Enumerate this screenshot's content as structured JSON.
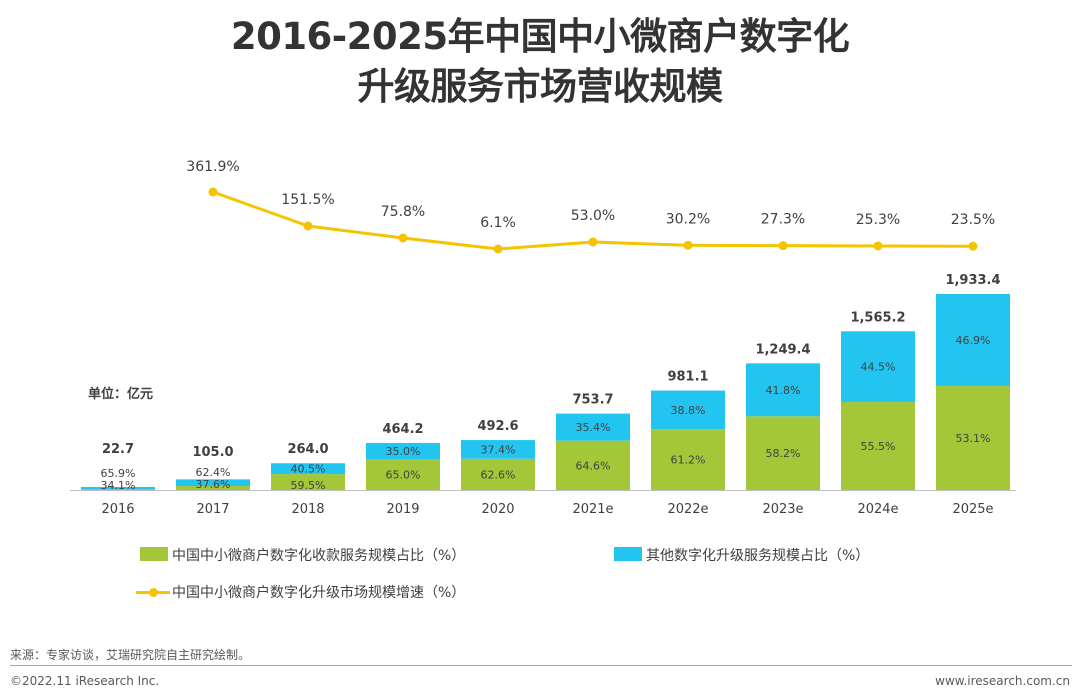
{
  "title_line1": "2016-2025年中国中小微商户数字化",
  "title_line2": "升级服务市场营收规模",
  "unit_label": "单位：亿元",
  "legend": {
    "green": "中国中小微商户数字化收款服务规模占比（%）",
    "blue": "其他数字化升级服务规模占比（%）",
    "line": "中国中小微商户数字化升级市场规模增速（%）"
  },
  "source": "来源：专家访谈，艾瑞研究院自主研究绘制。",
  "footer": {
    "copyright": "©2022.11 iResearch Inc.",
    "url": "www.iresearch.com.cn"
  },
  "colors": {
    "green": "#A4C739",
    "blue": "#22C5F0",
    "line": "#F5C400",
    "axis": "#BFBFBF",
    "text": "#404040"
  },
  "chart_data": {
    "type": "bar",
    "categories": [
      "2016",
      "2017",
      "2018",
      "2019",
      "2020",
      "2021e",
      "2022e",
      "2023e",
      "2024e",
      "2025e"
    ],
    "totals": [
      22.7,
      105.0,
      264.0,
      464.2,
      492.6,
      753.7,
      981.1,
      1249.4,
      1565.2,
      1933.4
    ],
    "total_labels": [
      "22.7",
      "105.0",
      "264.0",
      "464.2",
      "492.6",
      "753.7",
      "981.1",
      "1,249.4",
      "1,565.2",
      "1,933.4"
    ],
    "series": [
      {
        "name": "中国中小微商户数字化收款服务规模占比（%）",
        "values": [
          34.1,
          37.6,
          59.5,
          65.0,
          62.6,
          64.6,
          61.2,
          58.2,
          55.5,
          53.1
        ],
        "labels": [
          "34.1%",
          "37.6%",
          "59.5%",
          "65.0%",
          "62.6%",
          "64.6%",
          "61.2%",
          "58.2%",
          "55.5%",
          "53.1%"
        ]
      },
      {
        "name": "其他数字化升级服务规模占比（%）",
        "values": [
          65.9,
          62.4,
          40.5,
          35.0,
          37.4,
          35.4,
          38.8,
          41.8,
          44.5,
          46.9
        ],
        "labels": [
          "65.9%",
          "62.4%",
          "40.5%",
          "35.0%",
          "37.4%",
          "35.4%",
          "38.8%",
          "41.8%",
          "44.5%",
          "46.9%"
        ]
      }
    ],
    "growth": {
      "name": "中国中小微商户数字化升级市场规模增速（%）",
      "categories": [
        "2017",
        "2018",
        "2019",
        "2020",
        "2021e",
        "2022e",
        "2023e",
        "2024e",
        "2025e"
      ],
      "values": [
        361.9,
        151.5,
        75.8,
        6.1,
        53.0,
        30.2,
        27.3,
        25.3,
        23.5
      ],
      "labels": [
        "361.9%",
        "151.5%",
        "75.8%",
        "6.1%",
        "53.0%",
        "30.2%",
        "27.3%",
        "25.3%",
        "23.5%"
      ]
    },
    "ylabel": "亿元"
  }
}
